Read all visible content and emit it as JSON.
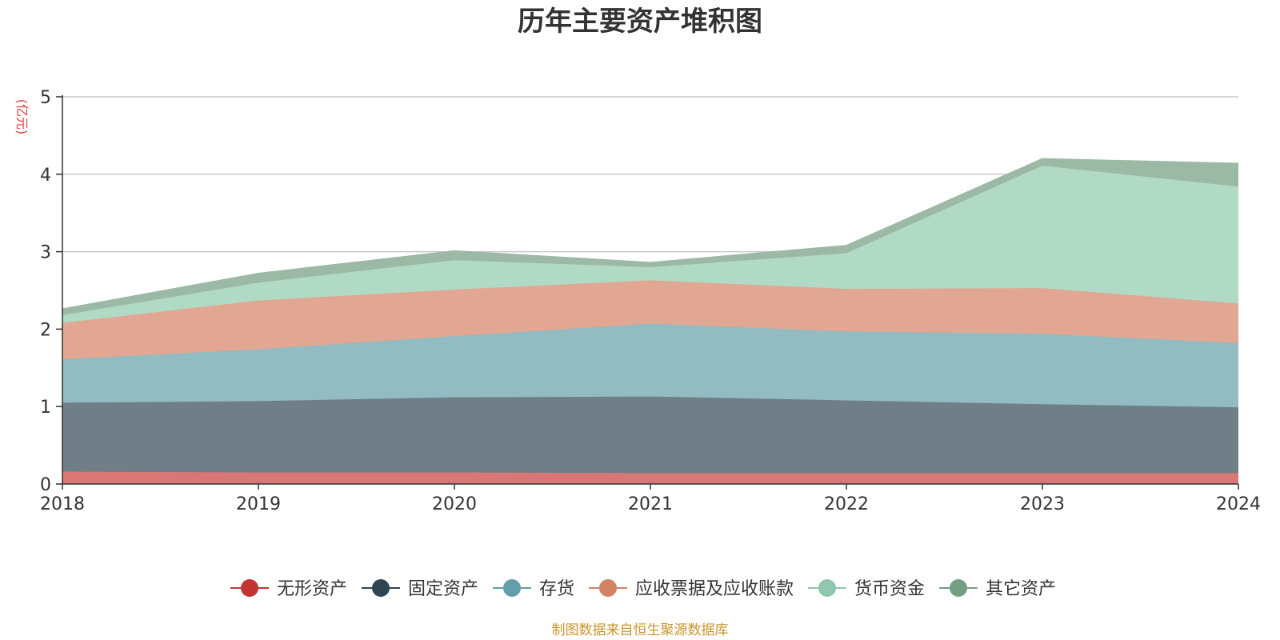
{
  "chart_data": {
    "type": "area",
    "title": "历年主要资产堆积图",
    "unit_label": "(亿元)",
    "x": [
      "2018",
      "2019",
      "2020",
      "2021",
      "2022",
      "2023",
      "2024"
    ],
    "ylim": [
      0,
      5
    ],
    "yticks": [
      "0",
      "1",
      "2",
      "3",
      "4",
      "5"
    ],
    "stacked": true,
    "grid": true,
    "legend_position": "bottom",
    "series": [
      {
        "name": "无形资产",
        "color": "#c23531",
        "fill": "#d97777",
        "values": [
          0.16,
          0.15,
          0.15,
          0.14,
          0.14,
          0.14,
          0.14
        ]
      },
      {
        "name": "固定资产",
        "color": "#2f4554",
        "fill": "#707e88",
        "values": [
          0.89,
          0.92,
          0.97,
          0.99,
          0.94,
          0.89,
          0.85
        ]
      },
      {
        "name": "存货",
        "color": "#61a0a8",
        "fill": "#92bcc1",
        "values": [
          0.56,
          0.67,
          0.79,
          0.94,
          0.89,
          0.91,
          0.83
        ]
      },
      {
        "name": "应收票据及应收账款",
        "color": "#d48265",
        "fill": "#e2a792",
        "values": [
          0.47,
          0.63,
          0.6,
          0.56,
          0.55,
          0.59,
          0.51
        ]
      },
      {
        "name": "货币资金",
        "color": "#91c7ae",
        "fill": "#b0d9c6",
        "values": [
          0.1,
          0.23,
          0.38,
          0.17,
          0.46,
          1.58,
          1.51
        ]
      },
      {
        "name": "其它资产",
        "color": "#749f83",
        "fill": "#9cb9a6",
        "values": [
          0.08,
          0.12,
          0.12,
          0.06,
          0.1,
          0.09,
          0.3
        ]
      }
    ],
    "source_note": "制图数据来自恒生聚源数据库"
  }
}
